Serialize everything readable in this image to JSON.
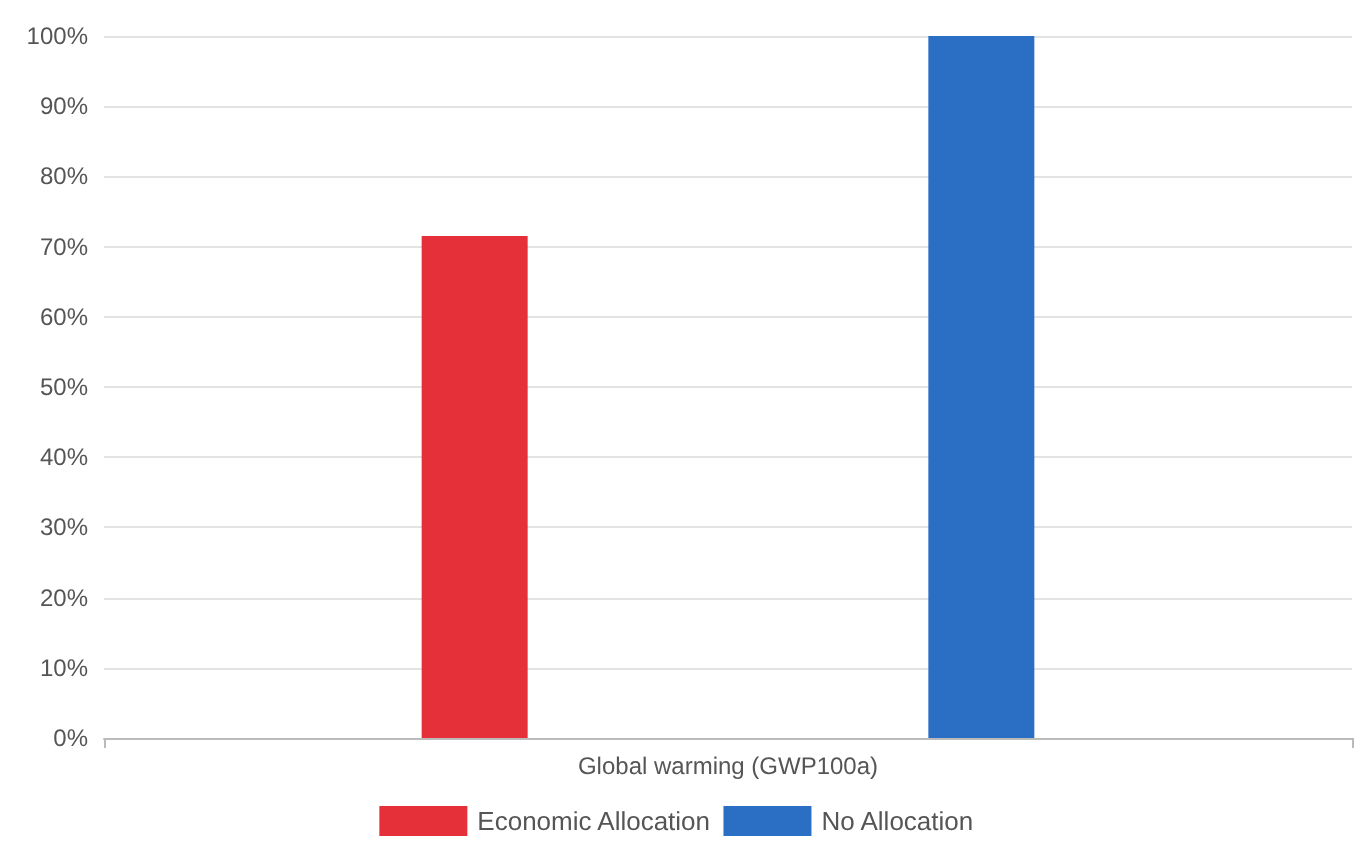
{
  "chart_data": {
    "type": "bar",
    "categories": [
      "Global warming (GWP100a)"
    ],
    "series": [
      {
        "name": "Economic Allocation",
        "color": "#e5303a",
        "values": [
          71.5
        ]
      },
      {
        "name": "No Allocation",
        "color": "#2a6fc4",
        "values": [
          100
        ]
      }
    ],
    "ylim": [
      0,
      100
    ],
    "yticks": [
      {
        "value": 0,
        "label": "0%"
      },
      {
        "value": 10,
        "label": "10%"
      },
      {
        "value": 20,
        "label": "20%"
      },
      {
        "value": 30,
        "label": "30%"
      },
      {
        "value": 40,
        "label": "40%"
      },
      {
        "value": 50,
        "label": "50%"
      },
      {
        "value": 60,
        "label": "60%"
      },
      {
        "value": 70,
        "label": "70%"
      },
      {
        "value": 80,
        "label": "80%"
      },
      {
        "value": 90,
        "label": "90%"
      },
      {
        "value": 100,
        "label": "100%"
      }
    ],
    "grid": "y",
    "legend": "bottom"
  }
}
